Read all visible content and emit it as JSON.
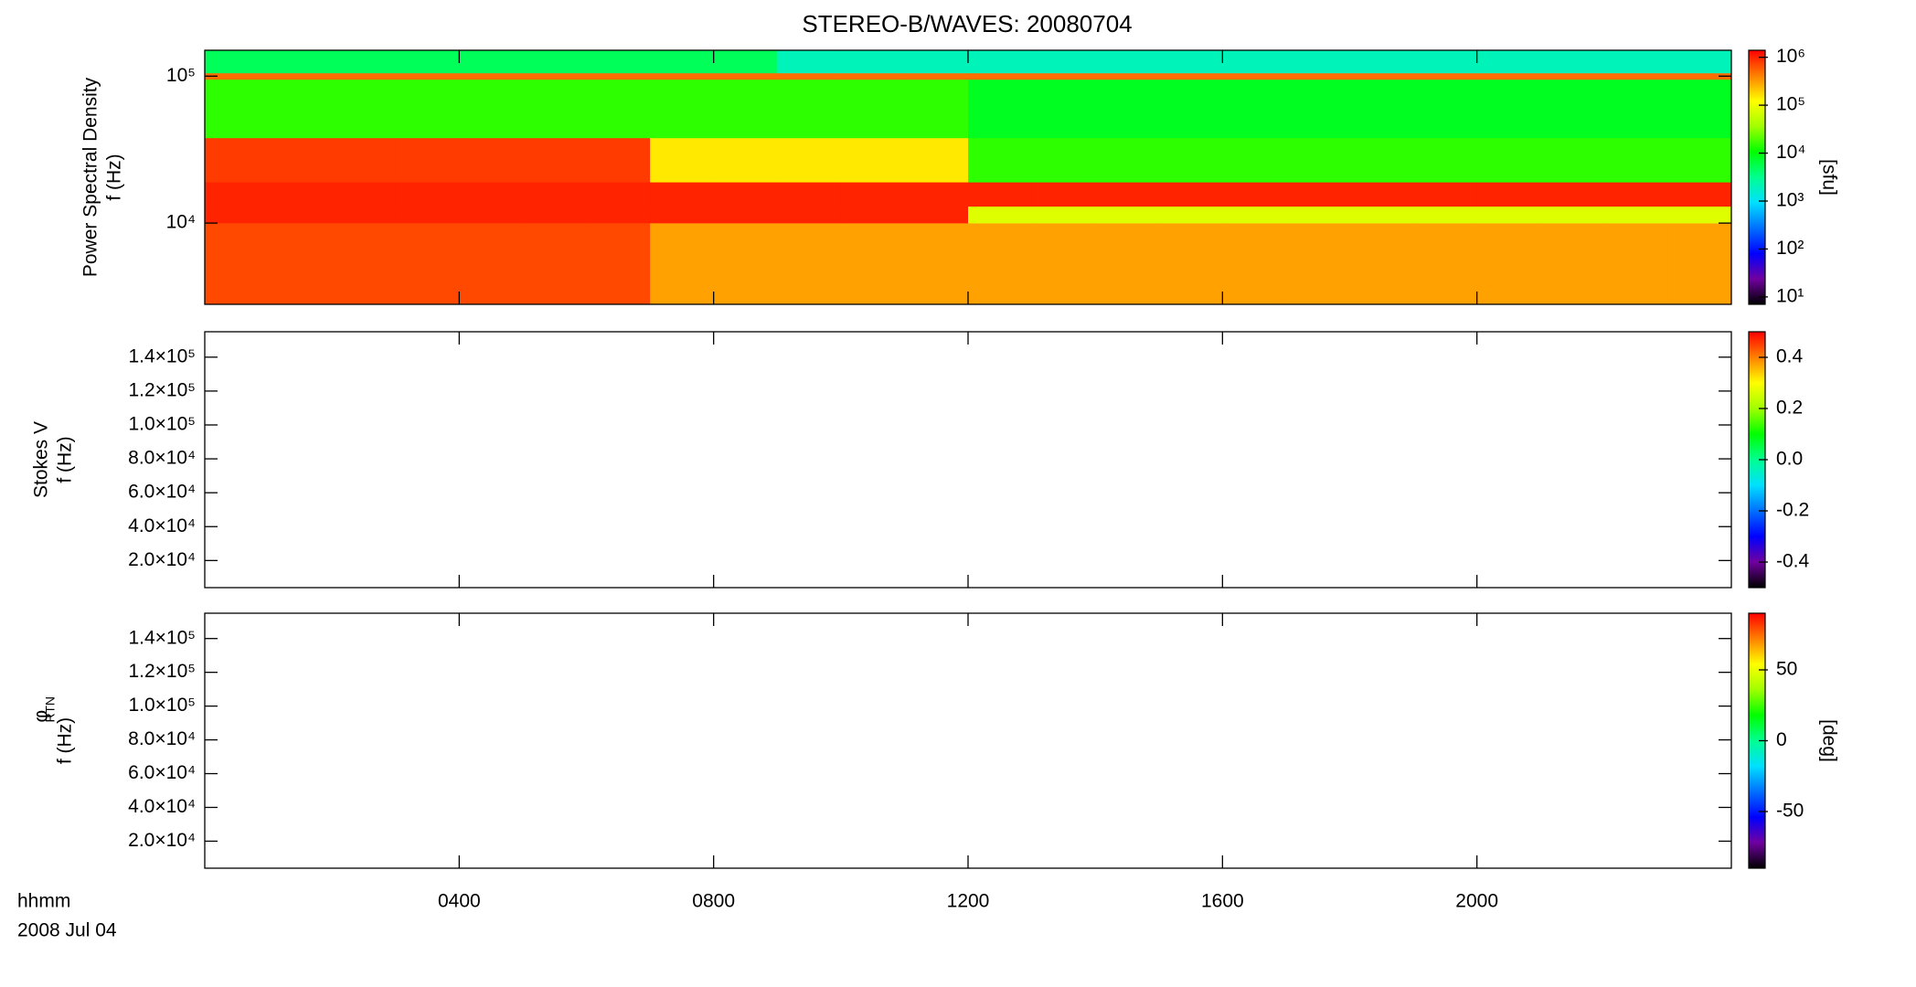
{
  "chart_data": [
    {
      "type": "heatmap",
      "title": "STEREO-B/WAVES: 20080704",
      "ylabel": [
        "Power Spectral Density",
        "f (Hz)"
      ],
      "ylog": true,
      "ylim": [
        2800,
        150000
      ],
      "yticks": [
        {
          "value": 10000,
          "label": "10⁴"
        },
        {
          "value": 100000,
          "label": "10⁵"
        }
      ],
      "xlim": [
        0,
        24
      ],
      "x": [
        0,
        1,
        2,
        3,
        4,
        5,
        6,
        7,
        8,
        9,
        10,
        11,
        12,
        13,
        14,
        15,
        16,
        17,
        18,
        19,
        20,
        21,
        22,
        23,
        24
      ],
      "y": [
        2800,
        10000,
        13000,
        19000,
        38000,
        95000,
        105000,
        150000
      ],
      "z": [
        [
          700000,
          1000000,
          1000000,
          800000,
          15000,
          500000,
          5000
        ],
        [
          700000,
          1000000,
          1000000,
          800000,
          15000,
          500000,
          5000
        ],
        [
          700000,
          1000000,
          1000000,
          800000,
          15000,
          500000,
          5000
        ],
        [
          700000,
          1000000,
          1000000,
          800000,
          15000,
          500000,
          5000
        ],
        [
          700000,
          1000000,
          1000000,
          800000,
          15000,
          500000,
          5000
        ],
        [
          700000,
          1000000,
          1000000,
          800000,
          15000,
          500000,
          5000
        ],
        [
          700000,
          1000000,
          1000000,
          800000,
          15000,
          500000,
          5000
        ],
        [
          300000,
          1000000,
          1000000,
          150000,
          15000,
          500000,
          5000
        ],
        [
          300000,
          1000000,
          1000000,
          150000,
          15000,
          500000,
          5000
        ],
        [
          300000,
          1000000,
          1000000,
          150000,
          15000,
          500000,
          2000
        ],
        [
          300000,
          1000000,
          1000000,
          150000,
          15000,
          500000,
          2000
        ],
        [
          300000,
          1000000,
          1000000,
          150000,
          15000,
          500000,
          2000
        ],
        [
          300000,
          80000,
          1000000,
          15000,
          8000,
          500000,
          2000
        ],
        [
          300000,
          80000,
          1000000,
          15000,
          8000,
          500000,
          2000
        ],
        [
          300000,
          80000,
          1000000,
          15000,
          8000,
          500000,
          2000
        ],
        [
          300000,
          80000,
          1000000,
          15000,
          8000,
          500000,
          2000
        ],
        [
          300000,
          80000,
          1000000,
          15000,
          8000,
          500000,
          2000
        ],
        [
          300000,
          80000,
          1000000,
          15000,
          8000,
          500000,
          2000
        ],
        [
          300000,
          80000,
          1000000,
          15000,
          8000,
          500000,
          2000
        ],
        [
          300000,
          80000,
          1000000,
          15000,
          8000,
          500000,
          2000
        ],
        [
          300000,
          80000,
          1000000,
          15000,
          8000,
          500000,
          2000
        ],
        [
          300000,
          80000,
          1000000,
          15000,
          8000,
          500000,
          2000
        ],
        [
          300000,
          80000,
          1000000,
          15000,
          8000,
          500000,
          2000
        ],
        [
          300000,
          80000,
          1000000,
          15000,
          8000,
          500000,
          2000
        ]
      ],
      "colormap": [
        "#000000",
        "#7000a0",
        "#0000ff",
        "#0070ff",
        "#00e0ff",
        "#00ff90",
        "#00ff00",
        "#a0ff00",
        "#ffff00",
        "#ff8000",
        "#ff0000"
      ],
      "colorbar": {
        "log": true,
        "lim": [
          7,
          1400000
        ],
        "label": "[sfu]",
        "ticks": [
          {
            "value": 10,
            "label": "10¹"
          },
          {
            "value": 100,
            "label": "10²"
          },
          {
            "value": 1000,
            "label": "10³"
          },
          {
            "value": 10000,
            "label": "10⁴"
          },
          {
            "value": 100000,
            "label": "10⁵"
          },
          {
            "value": 1000000,
            "label": "10⁶"
          }
        ]
      }
    },
    {
      "type": "heatmap",
      "ylabel": [
        "Stokes V",
        "f (Hz)"
      ],
      "ylim": [
        4000,
        155000
      ],
      "yticks": [
        {
          "value": 20000,
          "label": "2.0×10⁴"
        },
        {
          "value": 40000,
          "label": "4.0×10⁴"
        },
        {
          "value": 60000,
          "label": "6.0×10⁴"
        },
        {
          "value": 80000,
          "label": "8.0×10⁴"
        },
        {
          "value": 100000,
          "label": "1.0×10⁵"
        },
        {
          "value": 120000,
          "label": "1.2×10⁵"
        },
        {
          "value": 140000,
          "label": "1.4×10⁵"
        }
      ],
      "xlim": [
        0,
        24
      ],
      "colorbar": {
        "log": false,
        "lim": [
          -0.5,
          0.5
        ],
        "ticks": [
          -0.4,
          -0.2,
          {
            "value": 0,
            "label": "0.0"
          },
          0.2,
          0.4
        ]
      }
    },
    {
      "type": "heatmap",
      "ylabel": [
        "φ",
        "RTN",
        "f (Hz)"
      ],
      "ylim": [
        4000,
        155000
      ],
      "yticks": [
        {
          "value": 20000,
          "label": "2.0×10⁴"
        },
        {
          "value": 40000,
          "label": "4.0×10⁴"
        },
        {
          "value": 60000,
          "label": "6.0×10⁴"
        },
        {
          "value": 80000,
          "label": "8.0×10⁴"
        },
        {
          "value": 100000,
          "label": "1.0×10⁵"
        },
        {
          "value": 120000,
          "label": "1.2×10⁵"
        },
        {
          "value": 140000,
          "label": "1.4×10⁵"
        }
      ],
      "xlim": [
        0,
        24
      ],
      "xticks": [
        {
          "value": 4,
          "label": "0400"
        },
        {
          "value": 8,
          "label": "0800"
        },
        {
          "value": 12,
          "label": "1200"
        },
        {
          "value": 16,
          "label": "1600"
        },
        {
          "value": 20,
          "label": "2000"
        }
      ],
      "xlabel": [
        "hhmm",
        "2008 Jul 04"
      ],
      "colorbar": {
        "log": false,
        "lim": [
          -90,
          90
        ],
        "label": "[deg]",
        "ticks": [
          -50,
          0,
          50
        ]
      }
    }
  ]
}
